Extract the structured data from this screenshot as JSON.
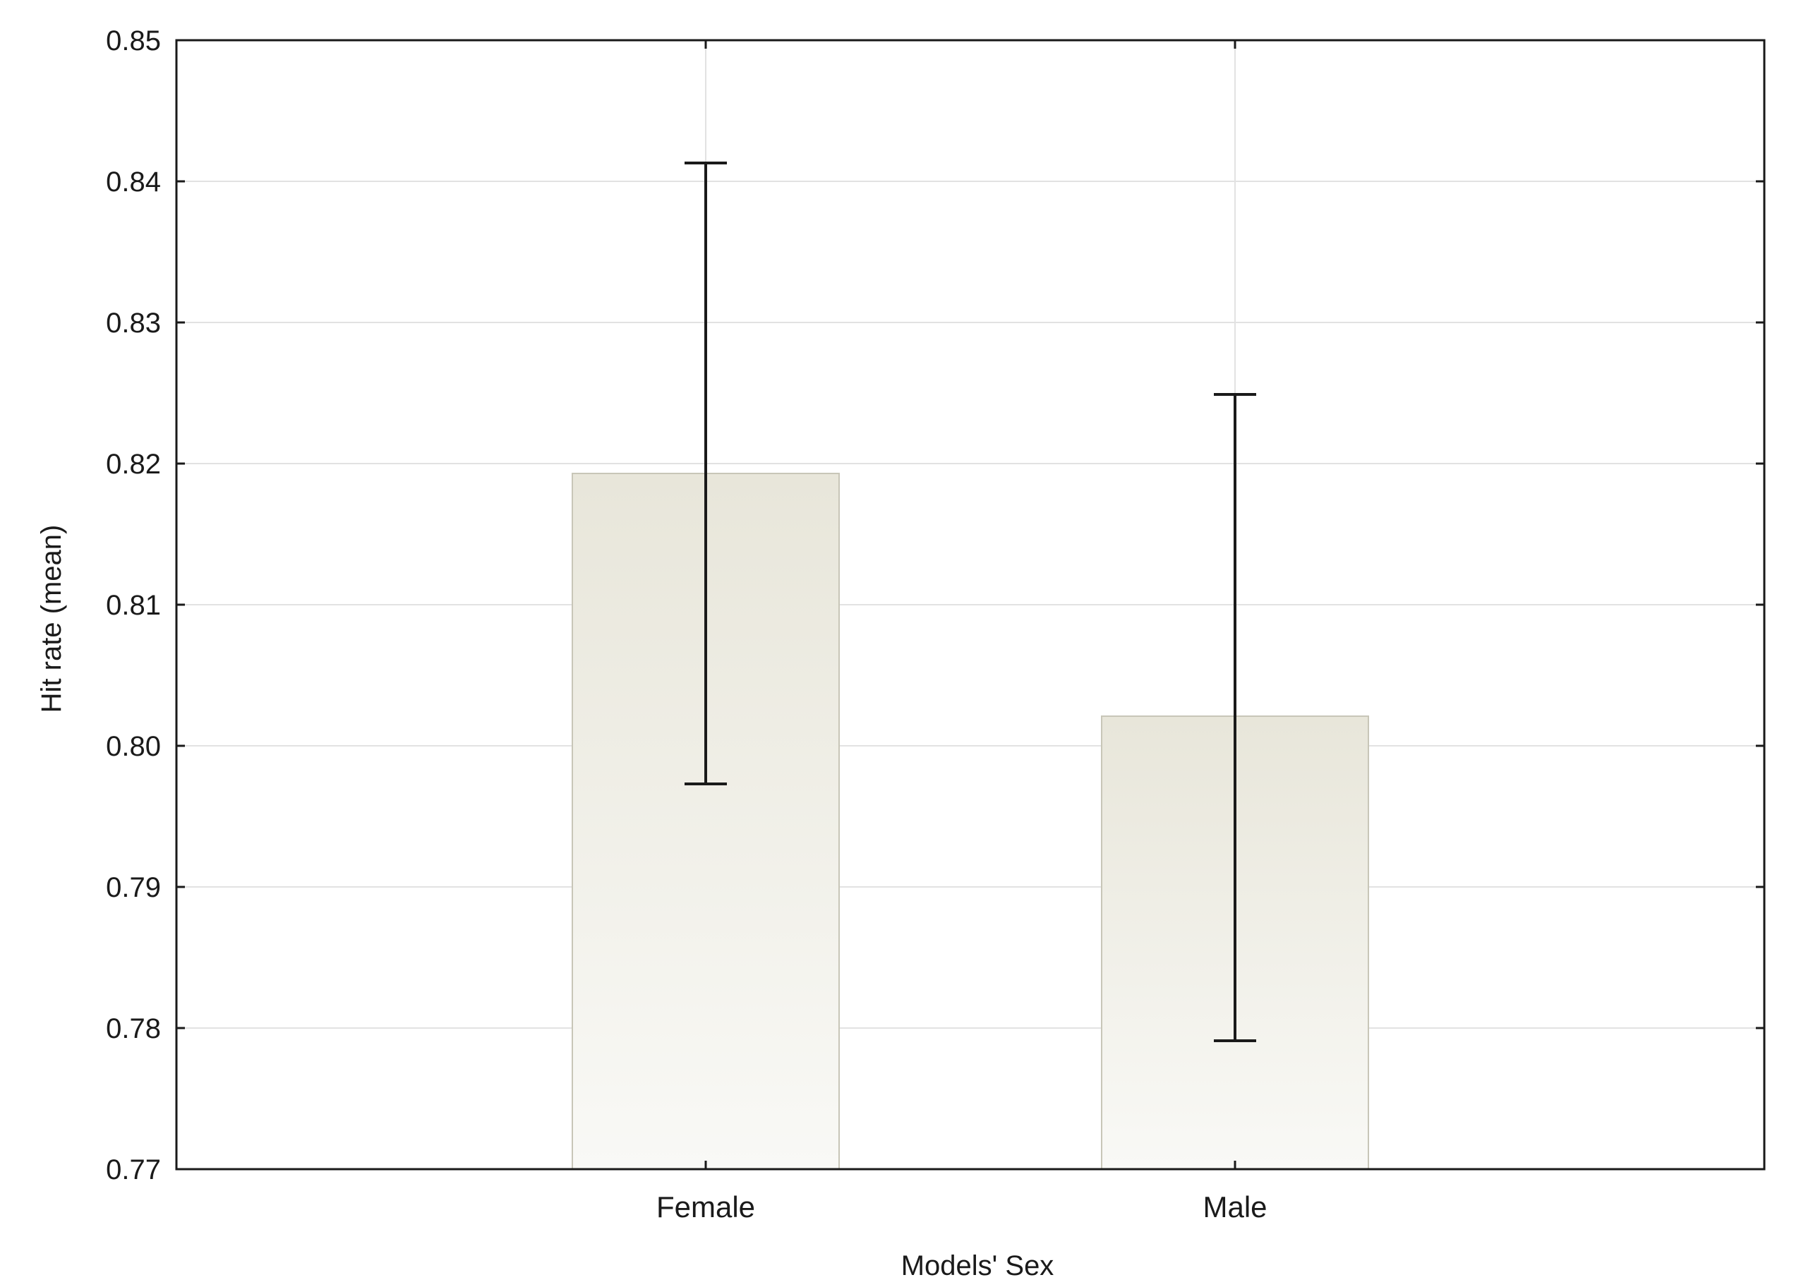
{
  "chart_data": {
    "type": "bar",
    "title": "",
    "xlabel": "Models' Sex",
    "ylabel": "Hit rate (mean)",
    "categories": [
      "Female",
      "Male"
    ],
    "values": [
      0.8193,
      0.8021
    ],
    "error_bars": {
      "low": [
        0.7973,
        0.7791
      ],
      "high": [
        0.8413,
        0.8249
      ]
    },
    "ylim": [
      0.77,
      0.85
    ],
    "yticks": [
      "0.85",
      "0.84",
      "0.83",
      "0.82",
      "0.81",
      "0.80",
      "0.79",
      "0.78",
      "0.77"
    ],
    "ytick_values": [
      0.85,
      0.84,
      0.83,
      0.82,
      0.81,
      0.8,
      0.79,
      0.78,
      0.77
    ],
    "grid": true,
    "legend": "none",
    "colors": {
      "bar_top": "#e8e6da",
      "bar_bottom": "#f9f9f6",
      "bar_edge": "#c8c6b8",
      "grid": "#e2e2e2",
      "axis": "#1a1a1a",
      "error_bar": "#1a1a1a"
    }
  }
}
